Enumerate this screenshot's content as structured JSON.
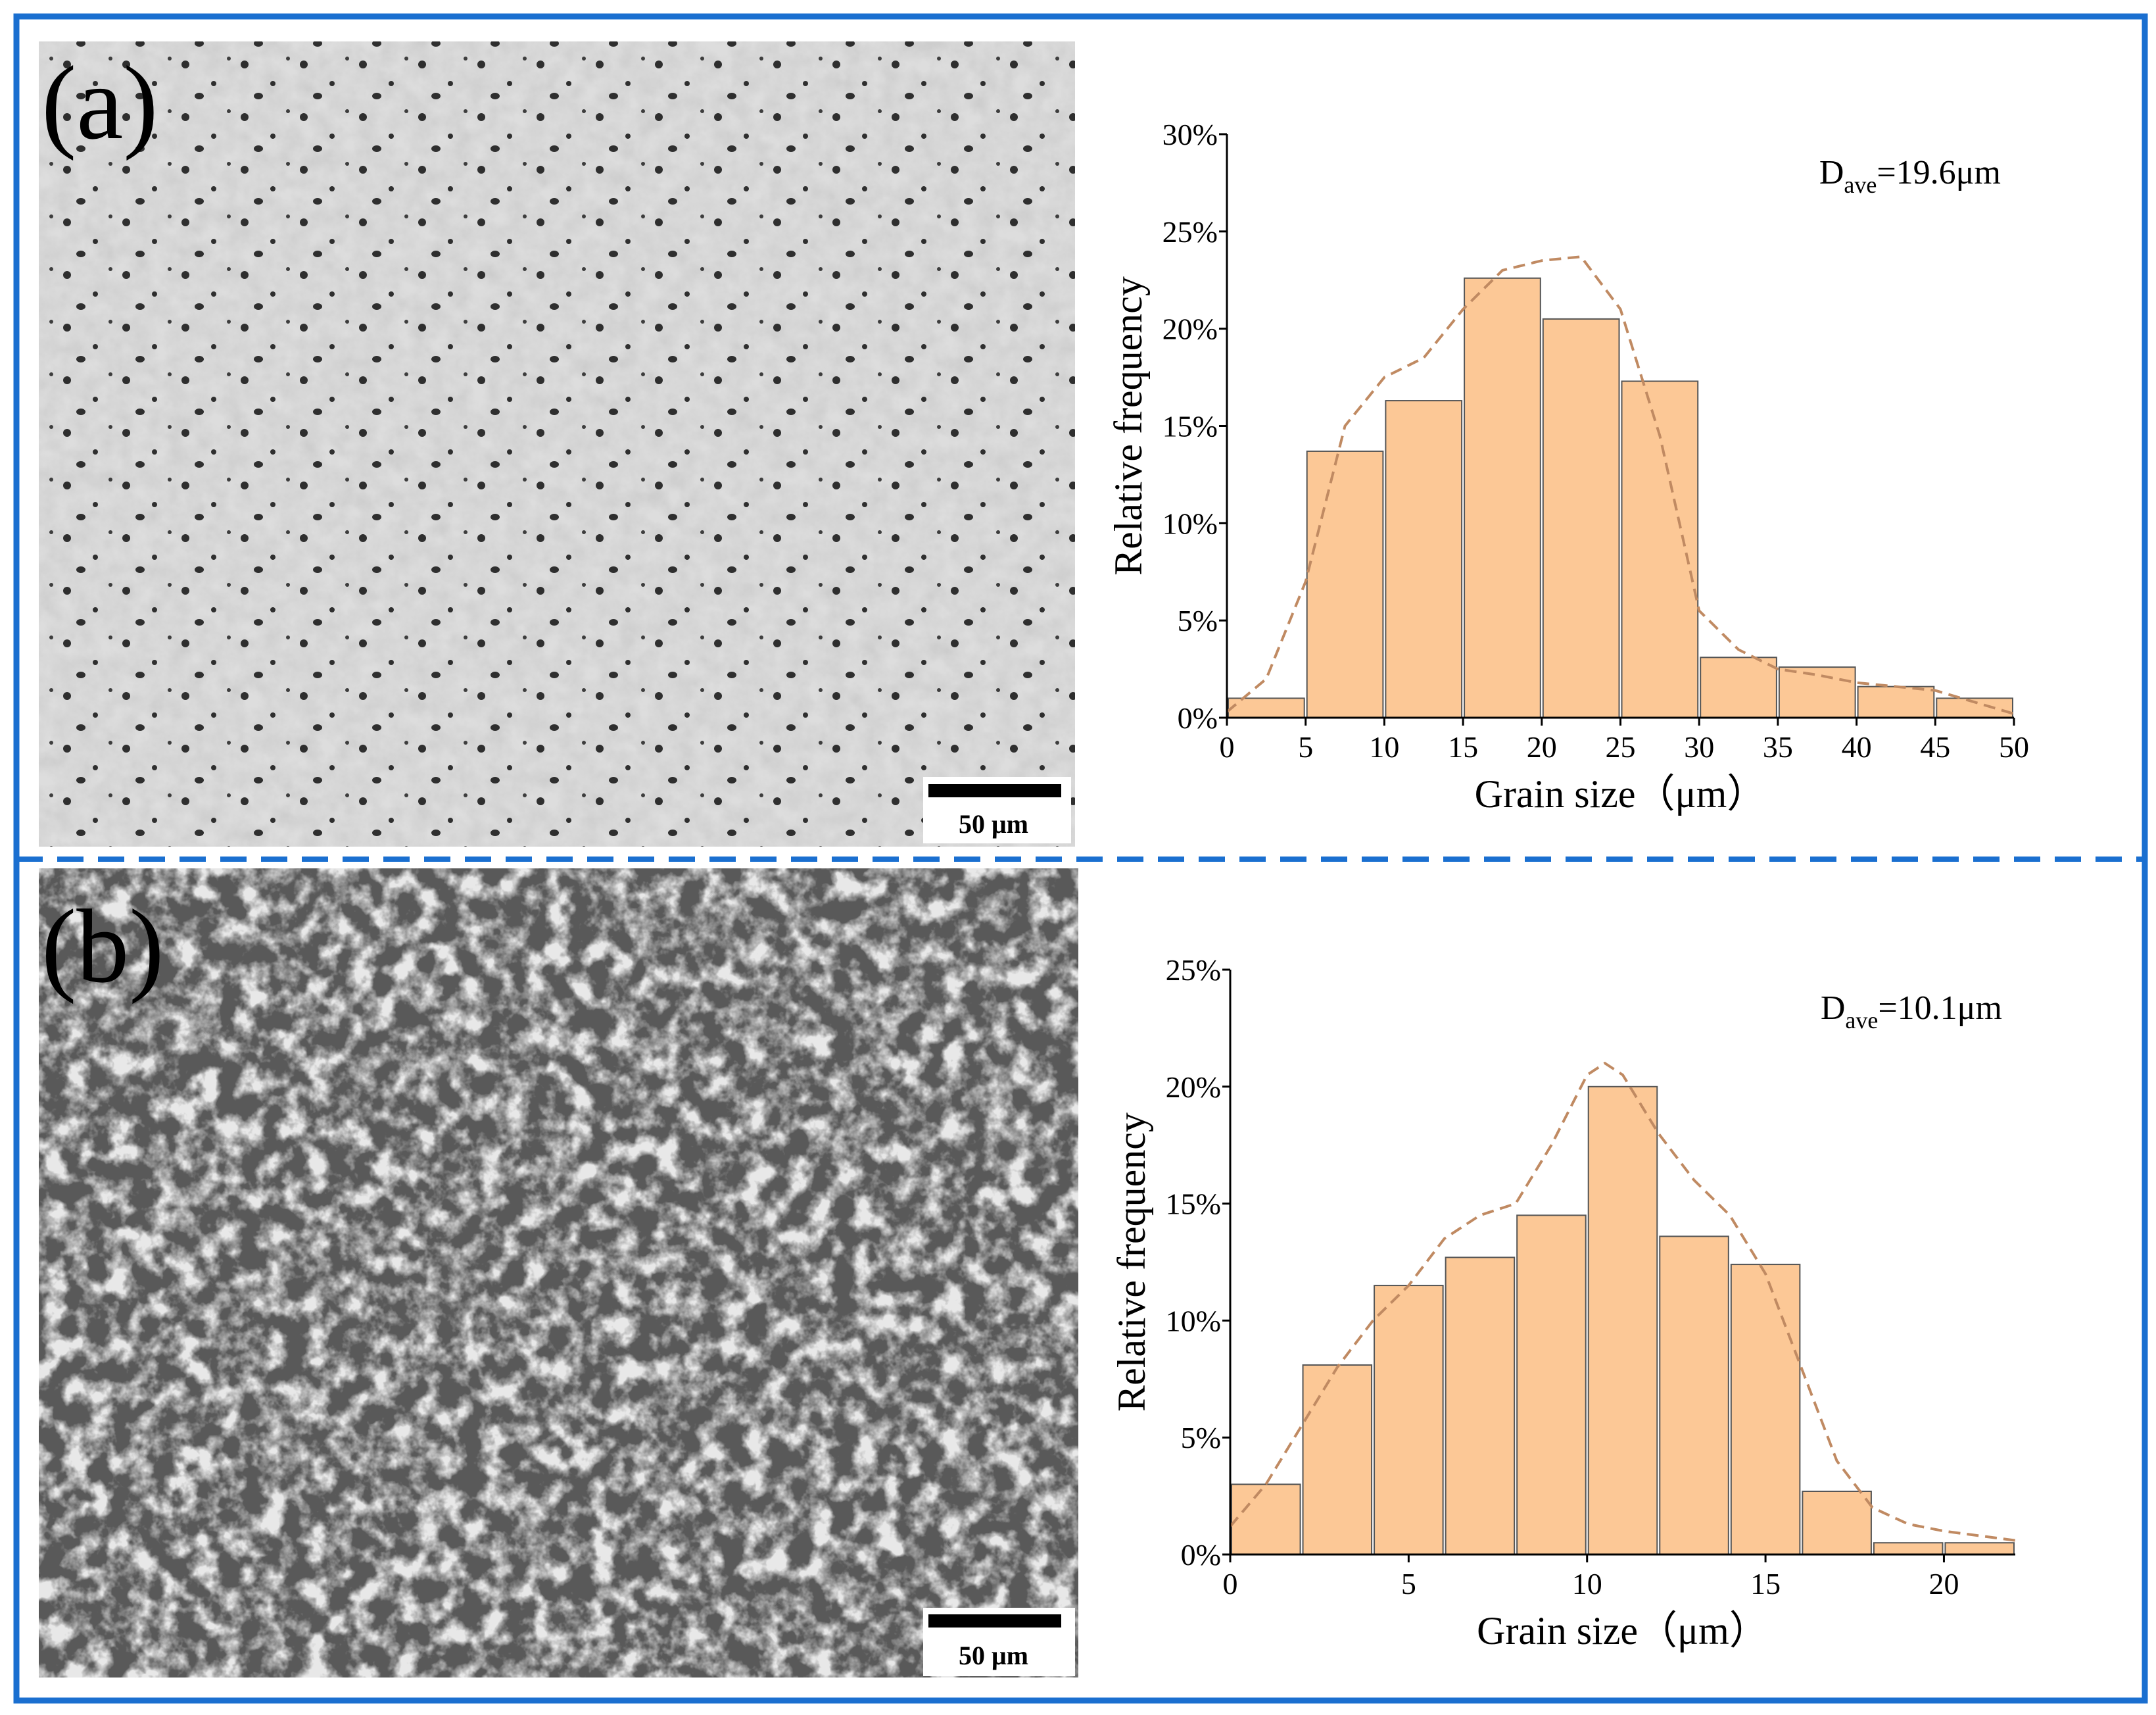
{
  "chart_data": [
    {
      "type": "histogram",
      "bins": [
        0,
        5,
        10,
        15,
        20,
        25,
        30,
        35,
        40,
        45,
        50
      ],
      "values": [
        1.0,
        13.7,
        16.3,
        22.6,
        20.5,
        17.3,
        3.1,
        2.6,
        1.6,
        1.0
      ],
      "color": "#fcc896",
      "xlim": [
        0,
        50
      ],
      "xticks": [
        0,
        5,
        10,
        15,
        20,
        25,
        30,
        35,
        40,
        45,
        50
      ],
      "ylim": [
        0,
        30
      ],
      "yticks": [
        {
          "value": 0,
          "label": "0%"
        },
        {
          "value": 5,
          "label": "5%"
        },
        {
          "value": 10,
          "label": "10%"
        },
        {
          "value": 15,
          "label": "15%"
        },
        {
          "value": 20,
          "label": "20%"
        },
        {
          "value": 25,
          "label": "25%"
        },
        {
          "value": 30,
          "label": "30%"
        }
      ],
      "x_label": "Grain size（μm）",
      "y_label": "Relative frequency",
      "annotation": {
        "main": "D",
        "sub": "ave",
        "rest": "=19.6μm"
      },
      "curve": {
        "x": [
          0,
          2.5,
          5,
          7.5,
          10,
          12.5,
          15,
          17.5,
          20,
          22.5,
          25,
          27.5,
          30,
          32.5,
          35,
          37.5,
          40,
          42.5,
          45,
          47.5,
          50
        ],
        "y": [
          0.3,
          2,
          7,
          15,
          17.5,
          18.5,
          21,
          23,
          23.5,
          23.7,
          21,
          14.5,
          5.5,
          3.5,
          2.5,
          2.2,
          1.8,
          1.6,
          1.4,
          0.8,
          0.2
        ],
        "color": "#c08a62",
        "dashed": true
      }
    },
    {
      "type": "histogram",
      "bins": [
        0,
        2,
        4,
        6,
        8,
        10,
        12,
        14,
        16,
        18,
        20,
        22
      ],
      "values": [
        3.0,
        8.1,
        11.5,
        12.7,
        14.5,
        20.0,
        13.6,
        12.4,
        2.7,
        0.5,
        0.5
      ],
      "color": "#fcc896",
      "xlim": [
        0,
        22
      ],
      "xticks": [
        0,
        5,
        10,
        15,
        20
      ],
      "ylim": [
        0,
        25
      ],
      "yticks": [
        {
          "value": 0,
          "label": "0%"
        },
        {
          "value": 5,
          "label": "5%"
        },
        {
          "value": 10,
          "label": "10%"
        },
        {
          "value": 15,
          "label": "15%"
        },
        {
          "value": 20,
          "label": "20%"
        },
        {
          "value": 25,
          "label": "25%"
        }
      ],
      "x_label": "Grain size（μm）",
      "y_label": "Relative frequency",
      "annotation": {
        "main": "D",
        "sub": "ave",
        "rest": "=10.1μm"
      },
      "curve": {
        "x": [
          0,
          1,
          2,
          3,
          4,
          5,
          6,
          7,
          8,
          9,
          10,
          10.5,
          11,
          12,
          13,
          14,
          15,
          16,
          17,
          18,
          19,
          20,
          21,
          22
        ],
        "y": [
          1.2,
          3,
          5.5,
          8,
          10,
          11.5,
          13.5,
          14.5,
          15,
          17.5,
          20.5,
          21,
          20.5,
          18,
          16,
          14.5,
          12,
          8,
          4,
          2,
          1.3,
          1,
          0.8,
          0.6
        ],
        "color": "#c08a62",
        "dashed": true
      }
    }
  ],
  "panels": [
    {
      "label": "(a)",
      "scale_bar": "50 μm"
    },
    {
      "label": "(b)",
      "scale_bar": "50 μm"
    }
  ]
}
